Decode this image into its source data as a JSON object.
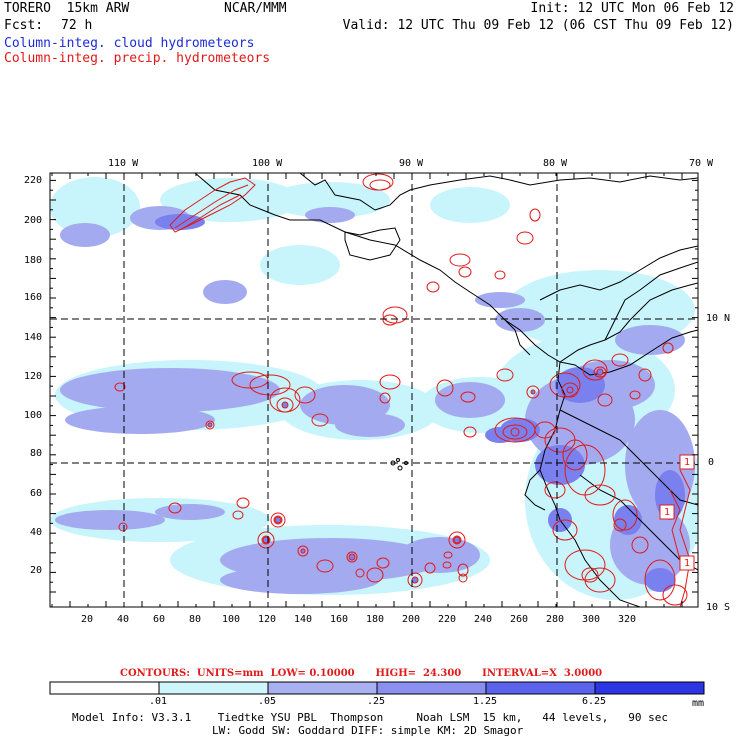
{
  "header": {
    "model": "TORERO  15km ARW",
    "center": "NCAR/MMM",
    "init": "Init: 12 UTC Mon 06 Feb 12",
    "fcst_label": "Fcst:",
    "fcst_value": "72 h",
    "valid": "Valid: 12 UTC Thu 09 Feb 12 (06 CST Thu 09 Feb 12)"
  },
  "legend": {
    "cloud": "Column-integ. cloud hydrometeors",
    "precip": "Column-integ. precip. hydrometeors"
  },
  "map": {
    "lon_labels": [
      "110 W",
      "100 W",
      "90 W",
      "80 W",
      "70 W"
    ],
    "lat_labels": [
      "10 N",
      "0",
      "10 S"
    ],
    "y_ticks": [
      "220",
      "200",
      "180",
      "160",
      "140",
      "120",
      "100",
      "80",
      "60",
      "40",
      "20"
    ],
    "x_ticks": [
      "20",
      "40",
      "60",
      "80",
      "100",
      "120",
      "140",
      "160",
      "180",
      "200",
      "220",
      "240",
      "260",
      "280",
      "300",
      "320"
    ],
    "contour_labels": [
      "1",
      "1",
      "1"
    ],
    "colors": {
      "light": "#c8f4fb",
      "medium": "#a4aaf0",
      "dark": "#7a80ee",
      "contour": "#e01a1a",
      "coast": "#000000"
    }
  },
  "contours": {
    "text": "CONTOURS:  UNITS=mm  LOW= 0.10000      HIGH=  24.300      INTERVAL=X  3.0000"
  },
  "colorbar": {
    "labels": [
      ".01",
      ".05",
      ".25",
      "1.25",
      "6.25"
    ],
    "unit": "mm",
    "colors": [
      "#ffffff",
      "#cdf5fa",
      "#a9b0f2",
      "#8a90ef",
      "#5c63ec",
      "#2c35e6",
      "#0e12e0"
    ]
  },
  "footer": {
    "line1": "Model Info: V3.3.1    Tiedtke YSU PBL  Thompson     Noah LSM  15 km,   44 levels,   90 sec",
    "line2": "LW: Godd SW: Goddard DIFF: simple KM: 2D Smagor"
  }
}
